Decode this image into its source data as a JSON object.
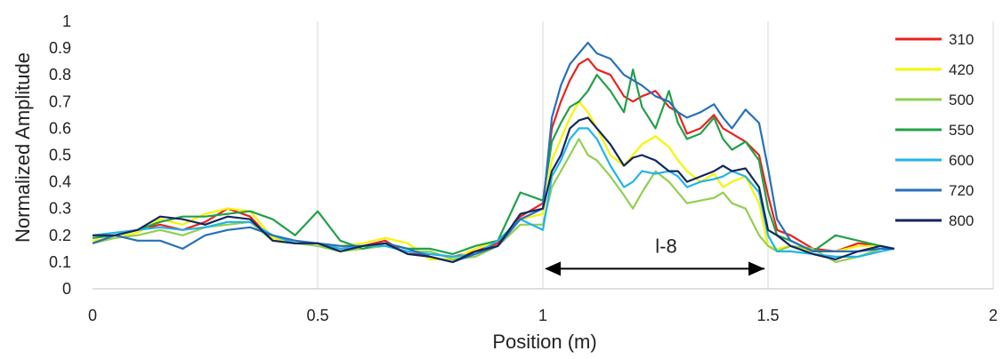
{
  "chart_data": {
    "type": "line",
    "title": "",
    "xlabel": "Position (m)",
    "ylabel": "Normalized Amplitude",
    "xlim": [
      0,
      2
    ],
    "ylim": [
      0,
      1
    ],
    "x_ticks": [
      "0",
      "0.5",
      "1",
      "1.5",
      "2"
    ],
    "x_tick_values": [
      0,
      0.5,
      1,
      1.5,
      2
    ],
    "y_ticks": [
      "0",
      "0.1",
      "0.2",
      "0.3",
      "0.4",
      "0.5",
      "0.6",
      "0.7",
      "0.8",
      "0.9",
      "1"
    ],
    "y_tick_values": [
      0,
      0.1,
      0.2,
      0.3,
      0.4,
      0.5,
      0.6,
      0.7,
      0.8,
      0.9,
      1
    ],
    "grid": "vertical",
    "legend_position": "right",
    "annotation": {
      "label": "l-8",
      "x_start": 1.0,
      "x_end": 1.5,
      "y": 0.075
    },
    "x": [
      0,
      0.05,
      0.1,
      0.15,
      0.2,
      0.25,
      0.3,
      0.35,
      0.4,
      0.45,
      0.5,
      0.55,
      0.6,
      0.65,
      0.7,
      0.75,
      0.8,
      0.85,
      0.9,
      0.95,
      1.0,
      1.02,
      1.04,
      1.06,
      1.08,
      1.1,
      1.12,
      1.15,
      1.18,
      1.2,
      1.22,
      1.25,
      1.28,
      1.3,
      1.32,
      1.35,
      1.38,
      1.4,
      1.42,
      1.45,
      1.48,
      1.5,
      1.52,
      1.55,
      1.6,
      1.65,
      1.7,
      1.75,
      1.78
    ],
    "series": [
      {
        "name": "310",
        "color": "#e8231e",
        "values": [
          0.19,
          0.2,
          0.22,
          0.24,
          0.22,
          0.25,
          0.3,
          0.27,
          0.18,
          0.17,
          0.17,
          0.15,
          0.16,
          0.18,
          0.13,
          0.13,
          0.12,
          0.14,
          0.17,
          0.27,
          0.32,
          0.6,
          0.7,
          0.78,
          0.84,
          0.86,
          0.82,
          0.8,
          0.72,
          0.7,
          0.72,
          0.74,
          0.68,
          0.66,
          0.58,
          0.6,
          0.65,
          0.6,
          0.58,
          0.55,
          0.5,
          0.35,
          0.22,
          0.2,
          0.15,
          0.14,
          0.17,
          0.16,
          0.15
        ]
      },
      {
        "name": "420",
        "color": "#f5f500",
        "values": [
          0.18,
          0.19,
          0.21,
          0.26,
          0.24,
          0.28,
          0.3,
          0.29,
          0.19,
          0.17,
          0.17,
          0.16,
          0.17,
          0.19,
          0.17,
          0.11,
          0.11,
          0.15,
          0.18,
          0.26,
          0.28,
          0.48,
          0.56,
          0.64,
          0.7,
          0.66,
          0.6,
          0.5,
          0.46,
          0.5,
          0.54,
          0.57,
          0.53,
          0.48,
          0.44,
          0.4,
          0.43,
          0.38,
          0.4,
          0.42,
          0.32,
          0.16,
          0.15,
          0.16,
          0.14,
          0.14,
          0.16,
          0.16,
          0.15
        ]
      },
      {
        "name": "500",
        "color": "#92cf50",
        "values": [
          0.17,
          0.19,
          0.2,
          0.22,
          0.2,
          0.23,
          0.24,
          0.25,
          0.18,
          0.17,
          0.16,
          0.14,
          0.15,
          0.16,
          0.14,
          0.14,
          0.11,
          0.12,
          0.16,
          0.24,
          0.24,
          0.38,
          0.44,
          0.5,
          0.56,
          0.5,
          0.48,
          0.42,
          0.35,
          0.3,
          0.36,
          0.44,
          0.4,
          0.36,
          0.32,
          0.33,
          0.34,
          0.36,
          0.32,
          0.3,
          0.2,
          0.16,
          0.14,
          0.16,
          0.15,
          0.1,
          0.12,
          0.15,
          0.15
        ]
      },
      {
        "name": "550",
        "color": "#22a049",
        "values": [
          0.19,
          0.2,
          0.22,
          0.25,
          0.27,
          0.27,
          0.28,
          0.29,
          0.26,
          0.2,
          0.29,
          0.18,
          0.15,
          0.17,
          0.15,
          0.15,
          0.13,
          0.16,
          0.18,
          0.36,
          0.33,
          0.55,
          0.62,
          0.68,
          0.7,
          0.74,
          0.8,
          0.74,
          0.66,
          0.82,
          0.68,
          0.6,
          0.74,
          0.62,
          0.56,
          0.58,
          0.64,
          0.56,
          0.52,
          0.55,
          0.48,
          0.3,
          0.2,
          0.18,
          0.14,
          0.2,
          0.18,
          0.16,
          0.15
        ]
      },
      {
        "name": "600",
        "color": "#20b4e8",
        "values": [
          0.2,
          0.21,
          0.22,
          0.23,
          0.22,
          0.23,
          0.25,
          0.25,
          0.2,
          0.17,
          0.17,
          0.15,
          0.16,
          0.16,
          0.14,
          0.13,
          0.12,
          0.13,
          0.18,
          0.26,
          0.22,
          0.42,
          0.48,
          0.56,
          0.6,
          0.6,
          0.56,
          0.46,
          0.38,
          0.4,
          0.44,
          0.43,
          0.44,
          0.42,
          0.38,
          0.4,
          0.41,
          0.42,
          0.44,
          0.42,
          0.36,
          0.2,
          0.14,
          0.14,
          0.13,
          0.12,
          0.12,
          0.14,
          0.15
        ]
      },
      {
        "name": "720",
        "color": "#2671b8",
        "values": [
          0.17,
          0.2,
          0.18,
          0.18,
          0.15,
          0.2,
          0.22,
          0.23,
          0.2,
          0.18,
          0.17,
          0.16,
          0.16,
          0.17,
          0.15,
          0.12,
          0.1,
          0.13,
          0.16,
          0.26,
          0.3,
          0.64,
          0.76,
          0.84,
          0.88,
          0.92,
          0.88,
          0.86,
          0.8,
          0.78,
          0.76,
          0.72,
          0.7,
          0.66,
          0.64,
          0.66,
          0.69,
          0.64,
          0.6,
          0.67,
          0.62,
          0.45,
          0.26,
          0.18,
          0.14,
          0.14,
          0.14,
          0.15,
          0.15
        ]
      },
      {
        "name": "800",
        "color": "#13275e",
        "values": [
          0.2,
          0.2,
          0.22,
          0.27,
          0.26,
          0.24,
          0.27,
          0.26,
          0.18,
          0.17,
          0.17,
          0.14,
          0.16,
          0.17,
          0.13,
          0.12,
          0.1,
          0.14,
          0.16,
          0.28,
          0.3,
          0.44,
          0.5,
          0.6,
          0.63,
          0.64,
          0.6,
          0.54,
          0.46,
          0.49,
          0.5,
          0.48,
          0.44,
          0.44,
          0.4,
          0.42,
          0.44,
          0.46,
          0.44,
          0.45,
          0.38,
          0.22,
          0.2,
          0.16,
          0.13,
          0.11,
          0.14,
          0.16,
          0.15
        ]
      }
    ]
  }
}
